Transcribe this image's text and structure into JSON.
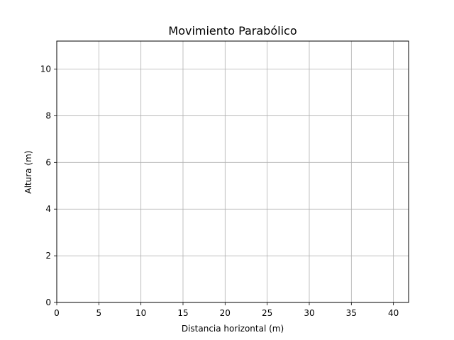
{
  "chart_data": {
    "type": "line",
    "title": "Movimiento Parabólico",
    "xlabel": "Distancia horizontal (m)",
    "ylabel": "Altura (m)",
    "xlim": [
      0,
      41.8
    ],
    "ylim": [
      0,
      11.2
    ],
    "xticks": [
      0,
      5,
      10,
      15,
      20,
      25,
      30,
      35,
      40
    ],
    "yticks": [
      0,
      2,
      4,
      6,
      8,
      10
    ],
    "grid": true,
    "series": []
  }
}
